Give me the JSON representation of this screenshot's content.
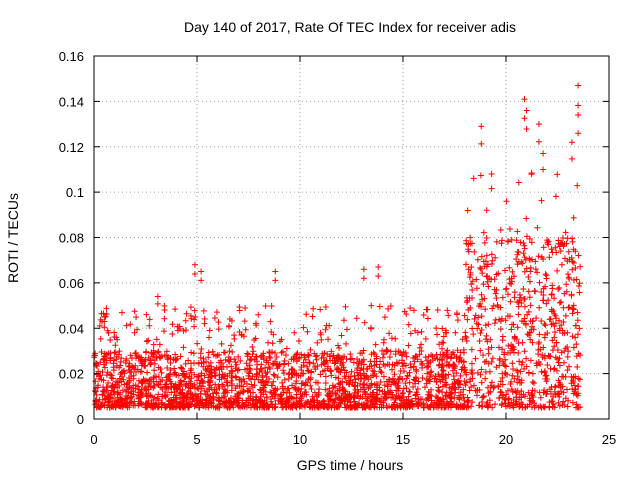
{
  "chart_data": {
    "type": "scatter",
    "title": "Day 140 of 2017, Rate Of TEC Index for receiver adis",
    "xlabel": "GPS time / hours",
    "ylabel": "ROTI / TECUs",
    "xlim": [
      0,
      25
    ],
    "ylim": [
      0,
      0.16
    ],
    "x_ticks": [
      0,
      5,
      10,
      15,
      20,
      25
    ],
    "y_ticks": [
      0,
      0.02,
      0.04,
      0.06,
      0.08,
      0.1,
      0.12,
      0.14,
      0.16
    ],
    "x_tick_labels": [
      "0",
      "5",
      "10",
      "15",
      "20",
      "25"
    ],
    "y_tick_labels": [
      "0",
      "0.02",
      "0.04",
      "0.06",
      "0.08",
      "0.1",
      "0.12",
      "0.14",
      "0.16"
    ],
    "grid": true,
    "marker": "+",
    "color": "#ff0000",
    "series": [
      {
        "name": "ROTI",
        "x_range": [
          0,
          23.6
        ],
        "bands": [
          {
            "x": [
              0,
              18
            ],
            "baseline": [
              0.005,
              0.03
            ]
          },
          {
            "x": [
              18,
              23.6
            ],
            "baseline": [
              0.005,
              0.08
            ]
          }
        ],
        "notable_points": [
          {
            "x": 0.5,
            "y": 0.043
          },
          {
            "x": 3.1,
            "y": 0.054
          },
          {
            "x": 4.9,
            "y": 0.068
          },
          {
            "x": 5.2,
            "y": 0.065
          },
          {
            "x": 8.8,
            "y": 0.065
          },
          {
            "x": 13.1,
            "y": 0.066
          },
          {
            "x": 13.8,
            "y": 0.067
          },
          {
            "x": 18.8,
            "y": 0.129
          },
          {
            "x": 19.3,
            "y": 0.108
          },
          {
            "x": 20.9,
            "y": 0.141
          },
          {
            "x": 21.0,
            "y": 0.136
          },
          {
            "x": 21.6,
            "y": 0.13
          },
          {
            "x": 21.8,
            "y": 0.117
          },
          {
            "x": 23.2,
            "y": 0.122
          },
          {
            "x": 23.5,
            "y": 0.147
          },
          {
            "x": 23.5,
            "y": 0.134
          }
        ]
      }
    ]
  }
}
